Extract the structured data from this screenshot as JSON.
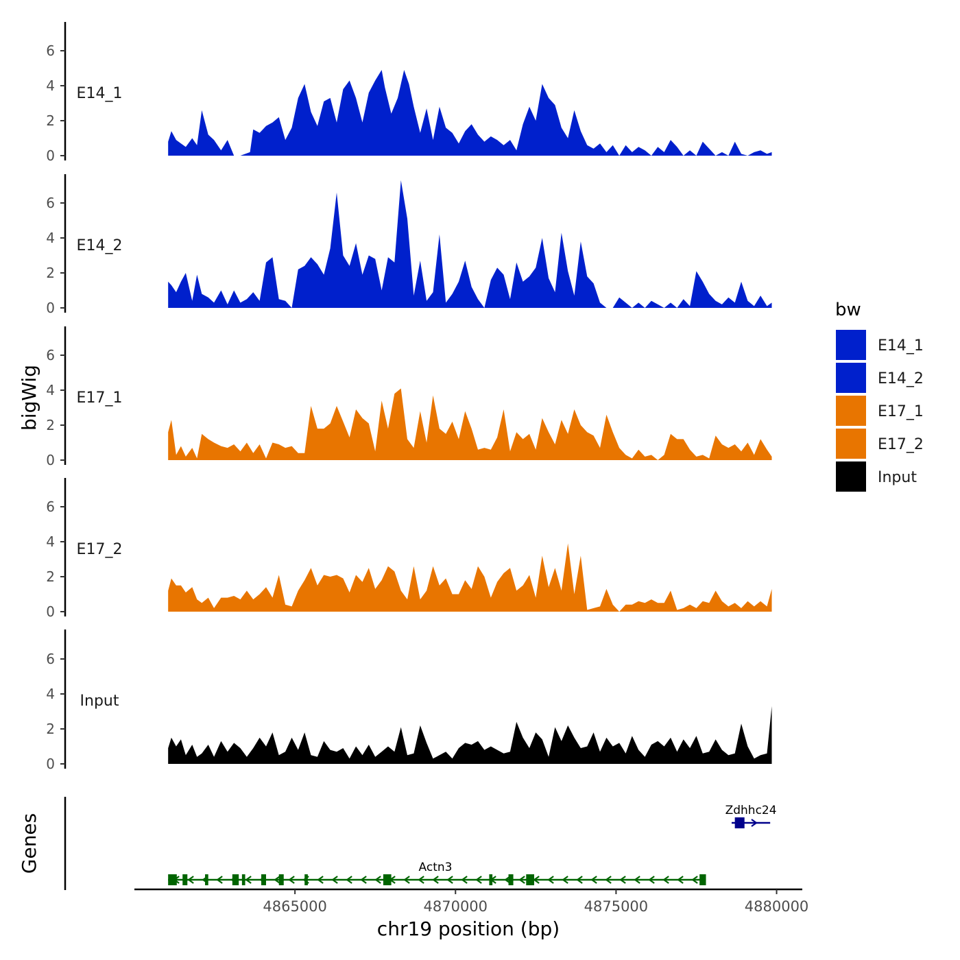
{
  "chart_data": {
    "type": "area",
    "ylabel": "bigWig",
    "xlabel": "chr19 position (bp)",
    "genes_label": "Genes",
    "xlim": [
      4860000,
      4880800
    ],
    "ylim": [
      0,
      7.6
    ],
    "y_ticks": [
      "0",
      "2",
      "4",
      "6"
    ],
    "x_ticks": [
      "4865000",
      "4870000",
      "4875000",
      "4880000"
    ],
    "legend": {
      "title": "bw",
      "entries": [
        {
          "label": "E14_1",
          "color": "#0020cc"
        },
        {
          "label": "E14_2",
          "color": "#0020cc"
        },
        {
          "label": "E17_1",
          "color": "#e87500"
        },
        {
          "label": "E17_2",
          "color": "#e87500"
        },
        {
          "label": "Input",
          "color": "#000000"
        }
      ]
    },
    "series": [
      {
        "name": "E14_1",
        "color": "#0020cc",
        "x": [
          4861050,
          4861150,
          4861300,
          4861450,
          4861600,
          4861800,
          4861950,
          4862100,
          4862300,
          4862480,
          4862700,
          4862900,
          4863100,
          4863300,
          4863600,
          4863700,
          4863900,
          4864100,
          4864300,
          4864500,
          4864700,
          4864900,
          4865100,
          4865300,
          4865500,
          4865700,
          4865900,
          4866100,
          4866300,
          4866500,
          4866700,
          4866900,
          4867100,
          4867300,
          4867500,
          4867700,
          4867800,
          4868000,
          4868200,
          4868400,
          4868550,
          4868700,
          4868900,
          4869100,
          4869300,
          4869500,
          4869700,
          4869900,
          4870100,
          4870300,
          4870500,
          4870700,
          4870900,
          4871100,
          4871300,
          4871500,
          4871700,
          4871900,
          4872100,
          4872300,
          4872500,
          4872700,
          4872900,
          4873100,
          4873300,
          4873500,
          4873700,
          4873900,
          4874100,
          4874300,
          4874500,
          4874700,
          4874900,
          4875100,
          4875300,
          4875500,
          4875700,
          4875900,
          4876100,
          4876300,
          4876500,
          4876700,
          4876900,
          4877100,
          4877300,
          4877500,
          4877700,
          4877900,
          4878100,
          4878300,
          4878500,
          4878700,
          4878900,
          4879100,
          4879300,
          4879500,
          4879700,
          4879850
        ],
        "values": [
          0.8,
          1.4,
          0.9,
          0.7,
          0.5,
          1.0,
          0.6,
          2.6,
          1.2,
          0.9,
          0.3,
          0.9,
          0.0,
          0.0,
          0.2,
          1.5,
          1.3,
          1.7,
          1.9,
          2.2,
          0.9,
          1.6,
          3.3,
          4.1,
          2.5,
          1.7,
          3.1,
          3.3,
          1.9,
          3.8,
          4.3,
          3.3,
          1.9,
          3.6,
          4.3,
          4.9,
          3.9,
          2.4,
          3.3,
          4.9,
          4.1,
          2.8,
          1.3,
          2.7,
          0.9,
          2.8,
          1.6,
          1.3,
          0.7,
          1.4,
          1.8,
          1.2,
          0.8,
          1.1,
          0.9,
          0.6,
          0.9,
          0.3,
          1.8,
          2.8,
          2.0,
          4.1,
          3.3,
          2.9,
          1.6,
          1.0,
          2.6,
          1.4,
          0.6,
          0.4,
          0.7,
          0.2,
          0.6,
          0.0,
          0.6,
          0.2,
          0.5,
          0.3,
          0.0,
          0.5,
          0.2,
          0.9,
          0.5,
          0.0,
          0.3,
          0.0,
          0.8,
          0.4,
          0.0,
          0.2,
          0.0,
          0.8,
          0.1,
          0.0,
          0.2,
          0.3,
          0.1,
          0.2
        ]
      },
      {
        "name": "E14_2",
        "color": "#0020cc",
        "x": [
          4861050,
          4861150,
          4861300,
          4861450,
          4861600,
          4861800,
          4861950,
          4862100,
          4862300,
          4862480,
          4862700,
          4862900,
          4863100,
          4863300,
          4863500,
          4863700,
          4863900,
          4864100,
          4864300,
          4864500,
          4864700,
          4864900,
          4865100,
          4865300,
          4865500,
          4865700,
          4865900,
          4866100,
          4866300,
          4866500,
          4866700,
          4866900,
          4867100,
          4867300,
          4867500,
          4867700,
          4867900,
          4868100,
          4868300,
          4868500,
          4868700,
          4868900,
          4869100,
          4869300,
          4869500,
          4869700,
          4869900,
          4870100,
          4870300,
          4870500,
          4870700,
          4870900,
          4871100,
          4871300,
          4871500,
          4871700,
          4871900,
          4872100,
          4872300,
          4872500,
          4872700,
          4872900,
          4873100,
          4873300,
          4873500,
          4873700,
          4873900,
          4874100,
          4874300,
          4874500,
          4874700,
          4874900,
          4875100,
          4875300,
          4875500,
          4875700,
          4875900,
          4876100,
          4876300,
          4876500,
          4876700,
          4876900,
          4877100,
          4877300,
          4877500,
          4877700,
          4877900,
          4878100,
          4878300,
          4878500,
          4878700,
          4878900,
          4879100,
          4879300,
          4879500,
          4879700,
          4879850
        ],
        "values": [
          1.5,
          1.3,
          0.9,
          1.5,
          2.0,
          0.4,
          1.9,
          0.8,
          0.6,
          0.3,
          1.0,
          0.2,
          1.0,
          0.3,
          0.5,
          0.9,
          0.4,
          2.6,
          2.9,
          0.5,
          0.4,
          0.0,
          2.2,
          2.4,
          2.9,
          2.5,
          1.9,
          3.4,
          6.6,
          3.0,
          2.4,
          3.7,
          1.9,
          3.0,
          2.8,
          1.0,
          2.9,
          2.6,
          7.3,
          5.1,
          0.7,
          2.7,
          0.4,
          0.9,
          4.2,
          0.3,
          0.8,
          1.5,
          2.7,
          1.2,
          0.5,
          0.0,
          1.6,
          2.3,
          1.9,
          0.5,
          2.6,
          1.5,
          1.8,
          2.3,
          4.0,
          1.7,
          0.9,
          4.3,
          2.1,
          0.7,
          3.8,
          1.8,
          1.4,
          0.3,
          0.0,
          0.0,
          0.6,
          0.3,
          0.0,
          0.3,
          0.0,
          0.4,
          0.2,
          0.0,
          0.3,
          0.0,
          0.5,
          0.1,
          2.1,
          1.5,
          0.8,
          0.4,
          0.2,
          0.6,
          0.3,
          1.5,
          0.4,
          0.1,
          0.7,
          0.1,
          0.3
        ]
      },
      {
        "name": "E17_1",
        "color": "#e87500",
        "x": [
          4861050,
          4861150,
          4861300,
          4861450,
          4861600,
          4861800,
          4861950,
          4862100,
          4862300,
          4862480,
          4862700,
          4862900,
          4863100,
          4863300,
          4863500,
          4863700,
          4863900,
          4864100,
          4864300,
          4864500,
          4864700,
          4864900,
          4865100,
          4865300,
          4865500,
          4865700,
          4865900,
          4866100,
          4866300,
          4866500,
          4866700,
          4866900,
          4867100,
          4867300,
          4867500,
          4867700,
          4867900,
          4868100,
          4868300,
          4868500,
          4868700,
          4868900,
          4869100,
          4869300,
          4869500,
          4869700,
          4869900,
          4870100,
          4870300,
          4870500,
          4870700,
          4870900,
          4871100,
          4871300,
          4871500,
          4871700,
          4871900,
          4872100,
          4872300,
          4872500,
          4872700,
          4872900,
          4873100,
          4873300,
          4873500,
          4873700,
          4873900,
          4874100,
          4874300,
          4874500,
          4874700,
          4874900,
          4875100,
          4875300,
          4875500,
          4875700,
          4875900,
          4876100,
          4876300,
          4876500,
          4876700,
          4876900,
          4877100,
          4877300,
          4877500,
          4877700,
          4877900,
          4878100,
          4878300,
          4878500,
          4878700,
          4878900,
          4879100,
          4879300,
          4879500,
          4879700,
          4879850
        ],
        "values": [
          1.6,
          2.3,
          0.3,
          0.8,
          0.2,
          0.7,
          0.1,
          1.5,
          1.2,
          1.0,
          0.8,
          0.7,
          0.9,
          0.5,
          1.0,
          0.4,
          0.9,
          0.1,
          1.0,
          0.9,
          0.7,
          0.8,
          0.4,
          0.4,
          3.1,
          1.8,
          1.8,
          2.1,
          3.1,
          2.2,
          1.3,
          2.9,
          2.4,
          2.1,
          0.5,
          3.4,
          1.8,
          3.8,
          4.1,
          1.2,
          0.7,
          2.8,
          1.0,
          3.7,
          1.8,
          1.5,
          2.2,
          1.2,
          2.8,
          1.8,
          0.6,
          0.7,
          0.6,
          1.3,
          2.9,
          0.5,
          1.6,
          1.2,
          1.5,
          0.6,
          2.4,
          1.6,
          0.9,
          2.3,
          1.5,
          2.9,
          2.0,
          1.6,
          1.4,
          0.7,
          2.6,
          1.6,
          0.7,
          0.3,
          0.1,
          0.6,
          0.2,
          0.3,
          0.0,
          0.3,
          1.5,
          1.2,
          1.2,
          0.6,
          0.2,
          0.3,
          0.1,
          1.4,
          0.9,
          0.7,
          0.9,
          0.5,
          1.0,
          0.3,
          1.2,
          0.6,
          0.2
        ]
      },
      {
        "name": "E17_2",
        "color": "#e87500",
        "x": [
          4861050,
          4861150,
          4861300,
          4861450,
          4861600,
          4861800,
          4861950,
          4862100,
          4862300,
          4862480,
          4862700,
          4862900,
          4863100,
          4863300,
          4863500,
          4863700,
          4863900,
          4864100,
          4864300,
          4864500,
          4864700,
          4864900,
          4865100,
          4865300,
          4865500,
          4865700,
          4865900,
          4866100,
          4866300,
          4866500,
          4866700,
          4866900,
          4867100,
          4867300,
          4867500,
          4867700,
          4867900,
          4868100,
          4868300,
          4868500,
          4868700,
          4868900,
          4869100,
          4869300,
          4869500,
          4869700,
          4869900,
          4870100,
          4870300,
          4870500,
          4870700,
          4870900,
          4871100,
          4871300,
          4871500,
          4871700,
          4871900,
          4872100,
          4872300,
          4872500,
          4872700,
          4872900,
          4873100,
          4873300,
          4873500,
          4873700,
          4873900,
          4874100,
          4874300,
          4874500,
          4874700,
          4874900,
          4875100,
          4875300,
          4875500,
          4875700,
          4875900,
          4876100,
          4876300,
          4876500,
          4876700,
          4876900,
          4877100,
          4877300,
          4877500,
          4877700,
          4877900,
          4878100,
          4878300,
          4878500,
          4878700,
          4878900,
          4879100,
          4879300,
          4879500,
          4879700,
          4879850
        ],
        "values": [
          1.2,
          1.9,
          1.5,
          1.5,
          1.1,
          1.4,
          0.7,
          0.5,
          0.8,
          0.2,
          0.8,
          0.8,
          0.9,
          0.7,
          1.2,
          0.7,
          1.0,
          1.4,
          0.8,
          2.1,
          0.4,
          0.3,
          1.2,
          1.8,
          2.5,
          1.5,
          2.1,
          2.0,
          2.1,
          1.9,
          1.1,
          2.1,
          1.7,
          2.5,
          1.3,
          1.8,
          2.6,
          2.3,
          1.2,
          0.7,
          2.6,
          0.7,
          1.2,
          2.6,
          1.5,
          1.9,
          1.0,
          1.0,
          1.8,
          1.3,
          2.6,
          2.0,
          0.8,
          1.7,
          2.2,
          2.5,
          1.2,
          1.5,
          2.1,
          0.8,
          3.2,
          1.4,
          2.5,
          1.2,
          3.9,
          1.0,
          3.2,
          0.1,
          0.2,
          0.3,
          1.3,
          0.4,
          0.0,
          0.4,
          0.4,
          0.6,
          0.5,
          0.7,
          0.5,
          0.5,
          1.2,
          0.1,
          0.2,
          0.4,
          0.2,
          0.6,
          0.5,
          1.2,
          0.6,
          0.3,
          0.5,
          0.2,
          0.6,
          0.3,
          0.6,
          0.3,
          1.3
        ]
      },
      {
        "name": "Input",
        "color": "#000000",
        "x": [
          4861050,
          4861150,
          4861300,
          4861450,
          4861600,
          4861800,
          4861950,
          4862100,
          4862300,
          4862480,
          4862700,
          4862900,
          4863100,
          4863300,
          4863500,
          4863700,
          4863900,
          4864100,
          4864300,
          4864500,
          4864700,
          4864900,
          4865100,
          4865300,
          4865500,
          4865700,
          4865900,
          4866100,
          4866300,
          4866500,
          4866700,
          4866900,
          4867100,
          4867300,
          4867500,
          4867700,
          4867900,
          4868100,
          4868300,
          4868500,
          4868700,
          4868900,
          4869100,
          4869300,
          4869500,
          4869700,
          4869900,
          4870100,
          4870300,
          4870500,
          4870700,
          4870900,
          4871100,
          4871300,
          4871500,
          4871700,
          4871900,
          4872100,
          4872300,
          4872500,
          4872700,
          4872900,
          4873100,
          4873300,
          4873500,
          4873700,
          4873900,
          4874100,
          4874300,
          4874500,
          4874700,
          4874900,
          4875100,
          4875300,
          4875500,
          4875700,
          4875900,
          4876100,
          4876300,
          4876500,
          4876700,
          4876900,
          4877100,
          4877300,
          4877500,
          4877700,
          4877900,
          4878100,
          4878300,
          4878500,
          4878700,
          4878900,
          4879100,
          4879300,
          4879500,
          4879700,
          4879850
        ],
        "values": [
          0.9,
          1.5,
          1.0,
          1.4,
          0.5,
          1.1,
          0.4,
          0.6,
          1.1,
          0.4,
          1.3,
          0.7,
          1.2,
          0.9,
          0.4,
          0.9,
          1.5,
          1.0,
          1.8,
          0.5,
          0.7,
          1.5,
          0.8,
          1.8,
          0.5,
          0.4,
          1.3,
          0.8,
          0.7,
          0.9,
          0.3,
          1.0,
          0.5,
          1.1,
          0.4,
          0.7,
          1.0,
          0.7,
          2.1,
          0.5,
          0.6,
          2.2,
          1.2,
          0.3,
          0.5,
          0.7,
          0.3,
          0.9,
          1.2,
          1.1,
          1.3,
          0.8,
          1.0,
          0.8,
          0.6,
          0.7,
          2.4,
          1.5,
          0.9,
          1.8,
          1.4,
          0.4,
          2.1,
          1.3,
          2.2,
          1.5,
          0.9,
          1.0,
          1.8,
          0.7,
          1.5,
          1.0,
          1.2,
          0.6,
          1.6,
          0.8,
          0.4,
          1.1,
          1.3,
          1.0,
          1.5,
          0.7,
          1.4,
          0.9,
          1.6,
          0.6,
          0.7,
          1.4,
          0.8,
          0.5,
          0.6,
          2.3,
          1.0,
          0.3,
          0.5,
          0.6,
          3.3
        ]
      }
    ],
    "genes": [
      {
        "name": "Actn3",
        "color": "#006400",
        "strand": "-",
        "start": 4861050,
        "end": 4877800,
        "exons": [
          [
            4861050,
            4861320
          ],
          [
            4861500,
            4861650
          ],
          [
            4862200,
            4862300
          ],
          [
            4863050,
            4863250
          ],
          [
            4863350,
            4863450
          ],
          [
            4863950,
            4864100
          ],
          [
            4864500,
            4864650
          ],
          [
            4865300,
            4865400
          ],
          [
            4867750,
            4868000
          ],
          [
            4871050,
            4871150
          ],
          [
            4871650,
            4871800
          ],
          [
            4872200,
            4872450
          ],
          [
            4877600,
            4877800
          ]
        ],
        "rows": "bottom"
      },
      {
        "name": "Zdhhc24",
        "color": "#00008b",
        "strand": "+",
        "start": 4878600,
        "end": 4879800,
        "exons": [
          [
            4878700,
            4879000
          ]
        ],
        "rows": "top"
      }
    ]
  }
}
